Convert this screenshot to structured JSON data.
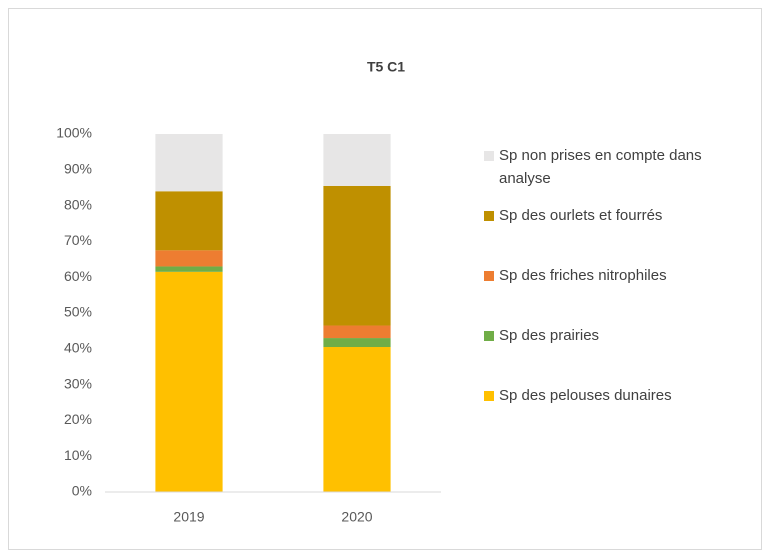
{
  "chart_data": {
    "type": "stacked_bar",
    "title": "T5 C1",
    "categories": [
      "2019",
      "2020"
    ],
    "series": [
      {
        "name": "Sp des pelouses dunaires",
        "color": "#ffc000",
        "values": [
          61.5,
          40.5
        ]
      },
      {
        "name": "Sp des prairies",
        "color": "#70ad47",
        "values": [
          1.5,
          2.5
        ]
      },
      {
        "name": "Sp des friches nitrophiles",
        "color": "#ed7d31",
        "values": [
          4.5,
          3.5
        ]
      },
      {
        "name": "Sp des ourlets et fourrés",
        "color": "#bf9000",
        "values": [
          16.5,
          39
        ]
      },
      {
        "name": "Sp non prises en compte dans analyse",
        "color": "#e7e6e6",
        "values": [
          16,
          14.5
        ]
      }
    ],
    "ylim": [
      0,
      100
    ],
    "yticks": [
      {
        "value": 0,
        "label": "0%"
      },
      {
        "value": 10,
        "label": "10%"
      },
      {
        "value": 20,
        "label": "20%"
      },
      {
        "value": 30,
        "label": "30%"
      },
      {
        "value": 40,
        "label": "40%"
      },
      {
        "value": 50,
        "label": "50%"
      },
      {
        "value": 60,
        "label": "60%"
      },
      {
        "value": 70,
        "label": "70%"
      },
      {
        "value": 80,
        "label": "80%"
      },
      {
        "value": 90,
        "label": "90%"
      },
      {
        "value": 100,
        "label": "100%"
      }
    ],
    "grid": false,
    "legend": "right"
  }
}
